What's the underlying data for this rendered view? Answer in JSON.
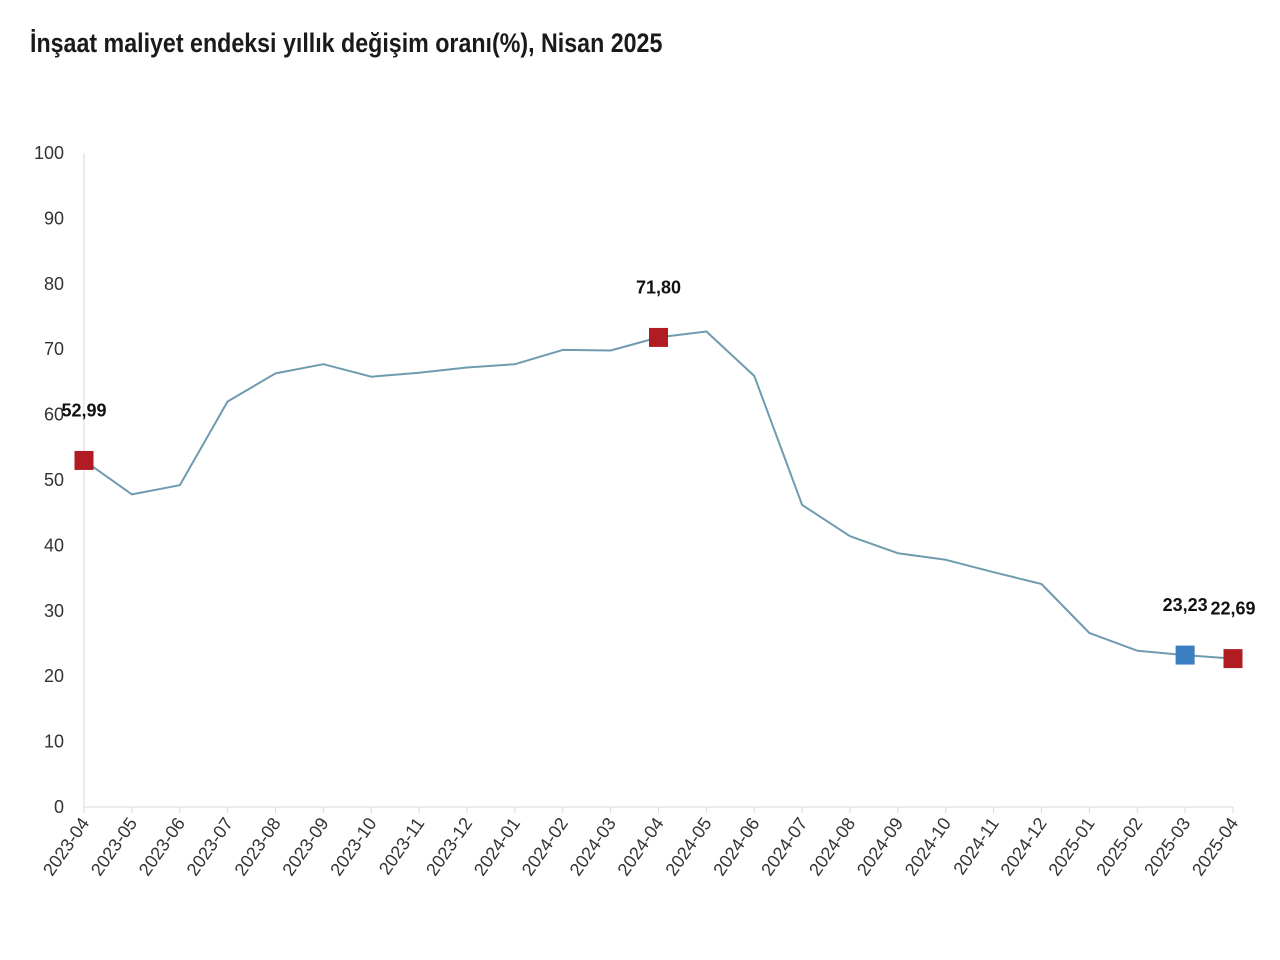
{
  "title": "İnşaat maliyet endeksi yıllık değişim oranı(%), Nisan 2025",
  "chart_data": {
    "type": "line",
    "title": "İnşaat maliyet endeksi yıllık değişim oranı(%), Nisan 2025",
    "xlabel": "",
    "ylabel": "",
    "ylim": [
      0,
      100
    ],
    "yticks": [
      "0",
      "10",
      "20",
      "30",
      "40",
      "50",
      "60",
      "70",
      "80",
      "90",
      "100"
    ],
    "grid": false,
    "legend": "none",
    "categories": [
      "2023-04",
      "2023-05",
      "2023-06",
      "2023-07",
      "2023-08",
      "2023-09",
      "2023-10",
      "2023-11",
      "2023-12",
      "2024-01",
      "2024-02",
      "2024-03",
      "2024-04",
      "2024-05",
      "2024-06",
      "2024-07",
      "2024-08",
      "2024-09",
      "2024-10",
      "2024-11",
      "2024-12",
      "2025-01",
      "2025-02",
      "2025-03",
      "2025-04"
    ],
    "series": [
      {
        "color": "#6f9bb0",
        "values": [
          52.99,
          47.8,
          49.2,
          62.0,
          66.3,
          67.7,
          65.8,
          66.4,
          67.2,
          67.7,
          69.9,
          69.8,
          71.8,
          72.7,
          65.9,
          46.2,
          41.4,
          38.8,
          37.8,
          35.9,
          34.1,
          26.6,
          23.9,
          23.23,
          22.69
        ]
      }
    ],
    "highlights": [
      {
        "index": 0,
        "label": "52,99",
        "color": "#b01c22"
      },
      {
        "index": 12,
        "label": "71,80",
        "color": "#b01c22"
      },
      {
        "index": 23,
        "label": "23,23",
        "color": "#3a7fc1"
      },
      {
        "index": 24,
        "label": "22,69",
        "color": "#b01c22"
      }
    ]
  }
}
